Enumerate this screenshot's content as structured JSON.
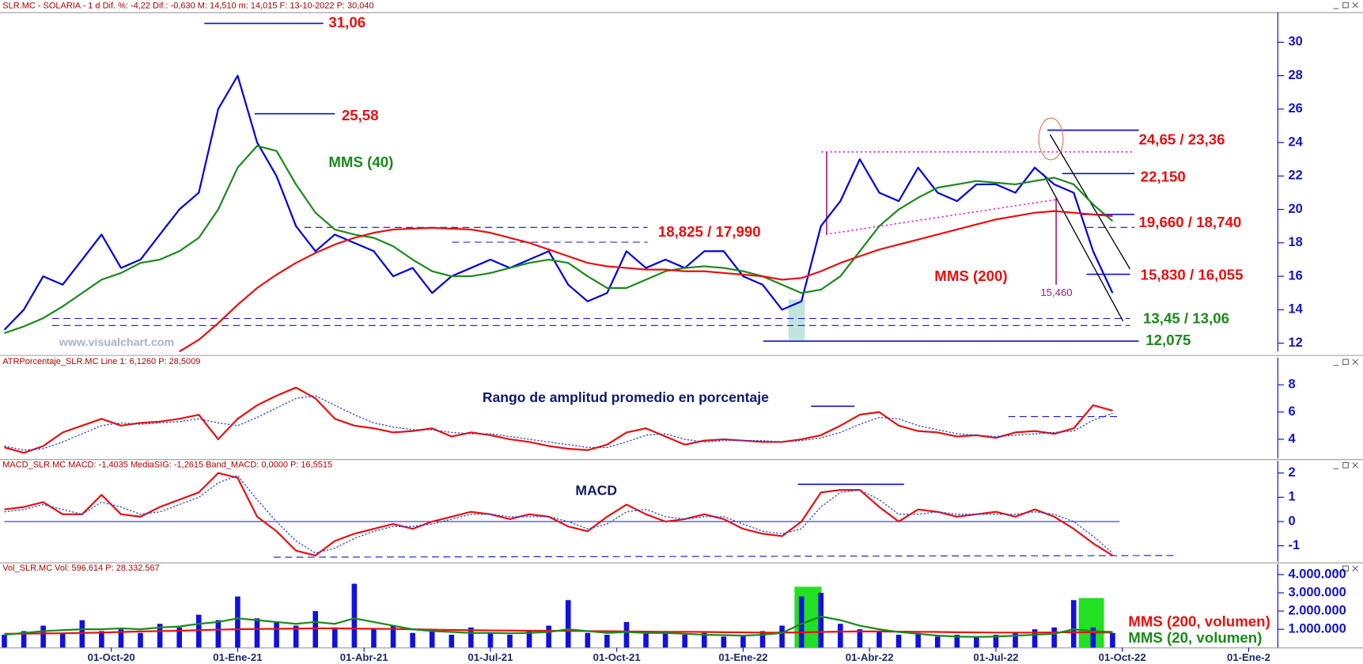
{
  "chart_data": [
    {
      "type": "line",
      "header": "SLR.MC - SOLARIA -  1 d  Dif. %: -4,22  Dif.: -0,630  M: 14,510  m: 14,015  F: 13-10-2022  P: 30,040",
      "x": [
        0,
        2,
        4,
        6,
        8,
        10,
        12,
        14,
        16,
        18,
        20,
        22,
        24,
        26,
        28,
        30,
        32,
        34,
        36,
        38,
        40,
        42,
        44,
        46,
        48,
        50,
        52,
        54,
        56,
        58,
        60,
        62,
        64,
        66,
        68,
        70,
        72,
        74,
        76,
        78,
        80,
        82,
        84,
        86,
        88,
        90,
        92,
        94,
        96,
        98,
        100,
        102,
        104,
        106,
        108,
        110,
        112,
        114
      ],
      "xlim": [
        0,
        131
      ],
      "ylim": [
        11.5,
        31.8
      ],
      "yticks": [
        12,
        14,
        16,
        18,
        20,
        22,
        24,
        26,
        28,
        30
      ],
      "series": [
        {
          "color": "#0000e0",
          "values": [
            12.8,
            14,
            16,
            15.5,
            17,
            18.5,
            16.5,
            17,
            18.5,
            20,
            21,
            26,
            28,
            24,
            22,
            19,
            17.5,
            18.5,
            18,
            17.5,
            16,
            16.5,
            15,
            16,
            16.5,
            17,
            16.5,
            17,
            17.5,
            15.5,
            14.5,
            15,
            17.5,
            16.5,
            17,
            16.5,
            17.5,
            17.5,
            16,
            15.5,
            14,
            14.5,
            19,
            20.5,
            23,
            21,
            20.5,
            22.5,
            21,
            20.5,
            21.5,
            21.5,
            21,
            22.5,
            21.5,
            21,
            17.5,
            15
          ]
        },
        {
          "name": "MMS (40)",
          "color": "#1a8a1a",
          "values": [
            12.6,
            13,
            13.5,
            14.2,
            15,
            15.8,
            16.2,
            16.8,
            17,
            17.5,
            18.3,
            20,
            22.5,
            23.8,
            23.5,
            21.5,
            19.8,
            18.8,
            18.5,
            18.3,
            17.8,
            17,
            16.3,
            16,
            16,
            16.2,
            16.5,
            16.8,
            17,
            16.8,
            16,
            15.3,
            15.3,
            15.8,
            16.3,
            16.5,
            16.6,
            16.5,
            16.3,
            16,
            15.5,
            15,
            15.2,
            16,
            17.5,
            19,
            20,
            20.7,
            21.3,
            21.5,
            21.7,
            21.6,
            21.5,
            21.7,
            21.9,
            21.5,
            20.3,
            19.3
          ]
        },
        {
          "name": "MMS (200)",
          "color": "#e81010",
          "values": [
            null,
            null,
            null,
            null,
            null,
            null,
            null,
            null,
            null,
            11.5,
            12.2,
            13.2,
            14.3,
            15.3,
            16.1,
            16.8,
            17.4,
            17.9,
            18.3,
            18.6,
            18.8,
            18.85,
            18.9,
            18.85,
            18.8,
            18.6,
            18.3,
            18,
            17.6,
            17.2,
            16.8,
            16.6,
            16.5,
            16.4,
            16.4,
            16.3,
            16.3,
            16.2,
            16.1,
            16,
            15.8,
            15.9,
            16.3,
            16.8,
            17.2,
            17.6,
            17.9,
            18.2,
            18.5,
            18.8,
            19.1,
            19.4,
            19.6,
            19.8,
            19.9,
            19.8,
            19.7,
            19.6
          ]
        }
      ],
      "annotations": [
        {
          "text": "31,06",
          "color": "#e81010"
        },
        {
          "text": "25,58",
          "color": "#e81010"
        },
        {
          "text": "18,825 / 17,990",
          "color": "#e81010"
        },
        {
          "text": "24,65 / 23,36",
          "color": "#e81010"
        },
        {
          "text": "22,150",
          "color": "#e81010"
        },
        {
          "text": "19,660 / 18,740",
          "color": "#e81010"
        },
        {
          "text": "15,830 / 16,055",
          "color": "#e81010"
        },
        {
          "text": "15,460",
          "color": "#a0207a"
        },
        {
          "text": "13,45 / 13,06",
          "color": "#1a8a1a"
        },
        {
          "text": "12,075",
          "color": "#1a8a1a"
        },
        {
          "text": "www.visualchart.com",
          "color": "#a8b0cc"
        }
      ]
    },
    {
      "type": "line",
      "header": "ATRPorcentaje_SLR.MC  Line 1: 6,1260  P: 28,5009",
      "title": "Rango de amplitud promedio en porcentaje",
      "x": [
        0,
        2,
        4,
        6,
        8,
        10,
        12,
        14,
        16,
        18,
        20,
        22,
        24,
        26,
        28,
        30,
        32,
        34,
        36,
        38,
        40,
        42,
        44,
        46,
        48,
        50,
        52,
        54,
        56,
        58,
        60,
        62,
        64,
        66,
        68,
        70,
        72,
        74,
        76,
        78,
        80,
        82,
        84,
        86,
        88,
        90,
        92,
        94,
        96,
        98,
        100,
        102,
        104,
        106,
        108,
        110,
        112,
        114
      ],
      "xlim": [
        0,
        131
      ],
      "ylim": [
        2.6,
        10
      ],
      "yticks": [
        4,
        6,
        8
      ],
      "series": [
        {
          "color": "#e81010",
          "values": [
            3.4,
            3.0,
            3.5,
            4.5,
            5.0,
            5.5,
            5.0,
            5.2,
            5.3,
            5.5,
            5.8,
            4.0,
            5.5,
            6.5,
            7.2,
            7.8,
            7.0,
            5.5,
            5.0,
            4.8,
            4.5,
            4.6,
            4.8,
            4.2,
            4.5,
            4.3,
            4.0,
            3.8,
            3.5,
            3.3,
            3.2,
            3.6,
            4.5,
            4.8,
            4.2,
            3.6,
            3.9,
            4.0,
            3.9,
            3.8,
            3.8,
            4.0,
            4.3,
            5.0,
            5.8,
            6.0,
            5.0,
            4.6,
            4.5,
            4.2,
            4.3,
            4.1,
            4.5,
            4.6,
            4.4,
            4.8,
            6.5,
            6.1
          ]
        },
        {
          "color": "#2040e0",
          "style": "dotted",
          "values": [
            3.5,
            3.2,
            3.3,
            3.8,
            4.4,
            5,
            5.2,
            5.1,
            5.2,
            5.3,
            5.5,
            5.2,
            5,
            5.6,
            6.3,
            7,
            7.2,
            6.5,
            5.8,
            5.2,
            4.9,
            4.7,
            4.7,
            4.5,
            4.4,
            4.4,
            4.2,
            4,
            3.8,
            3.6,
            3.4,
            3.4,
            3.8,
            4.3,
            4.4,
            4,
            3.8,
            3.9,
            3.9,
            3.9,
            3.8,
            3.9,
            4.1,
            4.5,
            5.1,
            5.6,
            5.5,
            5,
            4.7,
            4.4,
            4.3,
            4.2,
            4.3,
            4.4,
            4.5,
            4.6,
            5.4,
            5.9
          ]
        }
      ]
    },
    {
      "type": "line",
      "header": "MACD_SLR.MC  MACD: -1,4035  MediaSIG: -1,2615  Band_MACD: 0,0000  P: 16,5515",
      "title": "MACD",
      "x": [
        0,
        2,
        4,
        6,
        8,
        10,
        12,
        14,
        16,
        18,
        20,
        22,
        24,
        26,
        28,
        30,
        32,
        34,
        36,
        38,
        40,
        42,
        44,
        46,
        48,
        50,
        52,
        54,
        56,
        58,
        60,
        62,
        64,
        66,
        68,
        70,
        72,
        74,
        76,
        78,
        80,
        82,
        84,
        86,
        88,
        90,
        92,
        94,
        96,
        98,
        100,
        102,
        104,
        106,
        108,
        110,
        112,
        114
      ],
      "xlim": [
        0,
        131
      ],
      "ylim": [
        -1.65,
        2.5
      ],
      "yticks": [
        -1,
        0,
        1,
        2
      ],
      "ref_line": 0,
      "series": [
        {
          "color": "#e81010",
          "values": [
            0.5,
            0.6,
            0.8,
            0.3,
            0.3,
            1.1,
            0.3,
            0.2,
            0.6,
            0.9,
            1.2,
            2.0,
            1.8,
            0.2,
            -0.4,
            -1.2,
            -1.4,
            -0.8,
            -0.5,
            -0.3,
            -0.1,
            -0.3,
            0,
            0.2,
            0.4,
            0.3,
            0.1,
            0.3,
            0.2,
            -0.2,
            -0.4,
            0.2,
            0.7,
            0.3,
            0,
            0.1,
            0.3,
            0.1,
            -0.3,
            -0.5,
            -0.6,
            0,
            1.2,
            1.3,
            1.3,
            0.6,
            0,
            0.5,
            0.4,
            0.2,
            0.3,
            0.4,
            0.2,
            0.5,
            0.2,
            -0.3,
            -0.9,
            -1.4
          ]
        },
        {
          "color": "#2040e0",
          "style": "dotted",
          "values": [
            0.4,
            0.5,
            0.7,
            0.5,
            0.3,
            0.8,
            0.6,
            0.3,
            0.4,
            0.7,
            1.0,
            1.6,
            1.9,
            0.9,
            0.0,
            -0.8,
            -1.3,
            -1.1,
            -0.7,
            -0.4,
            -0.2,
            -0.2,
            -0.1,
            0.1,
            0.3,
            0.3,
            0.2,
            0.2,
            0.2,
            0.0,
            -0.3,
            -0.1,
            0.4,
            0.5,
            0.2,
            0.1,
            0.2,
            0.2,
            -0.1,
            -0.4,
            -0.5,
            -0.3,
            0.6,
            1.2,
            1.3,
            0.9,
            0.3,
            0.3,
            0.4,
            0.3,
            0.3,
            0.3,
            0.3,
            0.4,
            0.3,
            0.0,
            -0.6,
            -1.3
          ]
        }
      ]
    },
    {
      "type": "bar",
      "header": "Vol_SLR.MC  Vol: 596.614  P: 28.332.567",
      "x": [
        0,
        2,
        4,
        6,
        8,
        10,
        12,
        14,
        16,
        18,
        20,
        22,
        24,
        26,
        28,
        30,
        32,
        34,
        36,
        38,
        40,
        42,
        44,
        46,
        48,
        50,
        52,
        54,
        56,
        58,
        60,
        62,
        64,
        66,
        68,
        70,
        72,
        74,
        76,
        78,
        80,
        82,
        84,
        86,
        88,
        90,
        92,
        94,
        96,
        98,
        100,
        102,
        104,
        106,
        108,
        110,
        112,
        114
      ],
      "xlim": [
        0,
        131
      ],
      "ylim": [
        0,
        4570000
      ],
      "yticks": [
        {
          "value": 1000000,
          "label": "1.000.000"
        },
        {
          "value": 2000000,
          "label": "2.000.000"
        },
        {
          "value": 3000000,
          "label": "3.000.000"
        },
        {
          "value": 4000000,
          "label": "4.000.000"
        }
      ],
      "xticks": [
        {
          "value": 11,
          "label": "01-Oct-20"
        },
        {
          "value": 24,
          "label": "01-Ene-21"
        },
        {
          "value": 37,
          "label": "01-Abr-21"
        },
        {
          "value": 50,
          "label": "01-Jul-21"
        },
        {
          "value": 63,
          "label": "01-Oct-21"
        },
        {
          "value": 76,
          "label": "01-Ene-22"
        },
        {
          "value": 89,
          "label": "01-Abr-22"
        },
        {
          "value": 102,
          "label": "01-Jul-22"
        },
        {
          "value": 115,
          "label": "01-Oct-22"
        },
        {
          "value": 128,
          "label": "01-Ene-2"
        }
      ],
      "series": [
        {
          "color": "#1010e0",
          "values": [
            700000,
            900000,
            1200000,
            800000,
            1500000,
            900000,
            1000000,
            800000,
            1300000,
            1100000,
            1800000,
            1500000,
            2800000,
            1600000,
            1400000,
            1200000,
            2000000,
            1100000,
            3500000,
            1000000,
            1200000,
            800000,
            900000,
            700000,
            1100000,
            800000,
            700000,
            900000,
            1200000,
            2600000,
            800000,
            700000,
            1400000,
            800000,
            900000,
            700000,
            800000,
            600000,
            700000,
            900000,
            1200000,
            2800000,
            3000000,
            1300000,
            1000000,
            900000,
            700000,
            800000,
            600000,
            700000,
            600000,
            700000,
            800000,
            1000000,
            1100000,
            2600000,
            1100000,
            800000
          ]
        },
        {
          "name": "MMS (200, volumen)",
          "type": "line",
          "color": "#e81010",
          "values": [
            750000,
            760000,
            770000,
            780000,
            800000,
            820000,
            850000,
            880000,
            900000,
            920000,
            950000,
            980000,
            1000000,
            1020000,
            1030000,
            1040000,
            1050000,
            1050000,
            1040000,
            1030000,
            1020000,
            1000000,
            980000,
            960000,
            950000,
            940000,
            930000,
            920000,
            920000,
            910000,
            900000,
            890000,
            880000,
            870000,
            860000,
            860000,
            850000,
            840000,
            830000,
            820000,
            820000,
            830000,
            850000,
            870000,
            880000,
            880000,
            870000,
            860000,
            850000,
            840000,
            830000,
            820000,
            820000,
            820000,
            830000,
            840000,
            830000,
            820000
          ]
        },
        {
          "name": "MMS (20, volumen)",
          "type": "line",
          "color": "#1a8a1a",
          "values": [
            700000,
            800000,
            900000,
            950000,
            1000000,
            1000000,
            1050000,
            1000000,
            1100000,
            1150000,
            1300000,
            1400000,
            1600000,
            1500000,
            1400000,
            1300000,
            1400000,
            1300000,
            1600000,
            1400000,
            1200000,
            1000000,
            900000,
            850000,
            800000,
            800000,
            780000,
            800000,
            850000,
            1000000,
            900000,
            800000,
            850000,
            800000,
            800000,
            750000,
            700000,
            680000,
            650000,
            700000,
            800000,
            1300000,
            1700000,
            1500000,
            1200000,
            1000000,
            850000,
            750000,
            650000,
            600000,
            580000,
            600000,
            650000,
            700000,
            750000,
            1000000,
            900000,
            850000
          ]
        }
      ]
    }
  ]
}
